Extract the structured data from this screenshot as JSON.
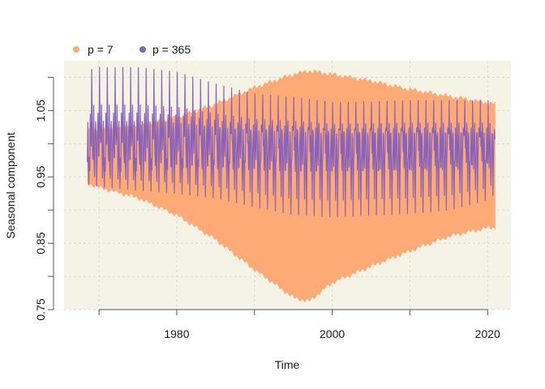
{
  "chart_data": {
    "type": "area",
    "xlabel": "Time",
    "ylabel": "Seasonal component",
    "xlim": [
      1965.5,
      2023
    ],
    "ylim": [
      0.75,
      1.125
    ],
    "x_ticks": [
      1980,
      2000,
      2020
    ],
    "x_tick_labels": [
      "1980",
      "2000",
      "2020"
    ],
    "x_grid": [
      1970,
      1980,
      1990,
      2000,
      2010,
      2020
    ],
    "y_ticks": [
      0.75,
      0.8,
      0.85,
      0.9,
      0.95,
      1.0,
      1.05,
      1.1
    ],
    "y_tick_labels": [
      "0.75",
      "",
      "0.85",
      "",
      "0.95",
      "",
      "1.05",
      ""
    ],
    "grid": true,
    "legend_position": "top-left",
    "colors": {
      "panel": "#f5f2e6",
      "grid": "#dcd9cc",
      "axis": "#555555"
    },
    "series": [
      {
        "name": "p = 7",
        "kind": "band",
        "color": "#fdaa76",
        "x": [
          1968.5,
          1970,
          1975,
          1980,
          1985,
          1990,
          1995,
          1997,
          2000,
          2005,
          2010,
          2015,
          2020,
          2021
        ],
        "upper": [
          1.021,
          1.022,
          1.028,
          1.04,
          1.06,
          1.085,
          1.105,
          1.11,
          1.105,
          1.095,
          1.082,
          1.072,
          1.062,
          1.06
        ],
        "lower": [
          0.94,
          0.934,
          0.918,
          0.892,
          0.855,
          0.81,
          0.768,
          0.762,
          0.79,
          0.815,
          0.838,
          0.86,
          0.873,
          0.873
        ]
      },
      {
        "name": "p = 365",
        "kind": "oscillation",
        "color": "#8a63b8",
        "x": [
          1968.5,
          1970,
          1975,
          1980,
          1985,
          1990,
          1995,
          2000,
          2005,
          2010,
          2015,
          2020,
          2021
        ],
        "upper": [
          1.11,
          1.115,
          1.115,
          1.108,
          1.09,
          1.075,
          1.07,
          1.062,
          1.063,
          1.065,
          1.065,
          1.065,
          1.06
        ],
        "lower": [
          0.94,
          0.935,
          0.93,
          0.925,
          0.918,
          0.905,
          0.893,
          0.89,
          0.892,
          0.895,
          0.9,
          0.915,
          0.925
        ]
      }
    ]
  }
}
